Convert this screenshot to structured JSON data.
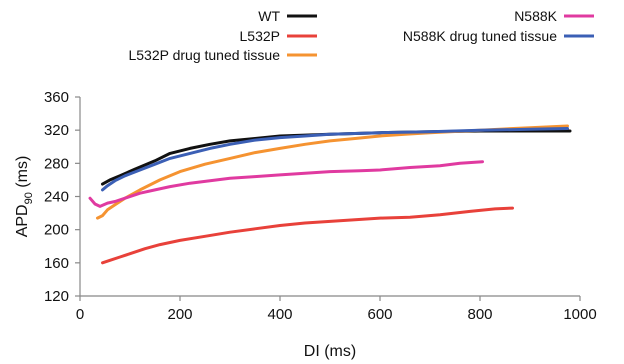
{
  "chart_data": {
    "type": "line",
    "title": "",
    "xlabel": "DI (ms)",
    "ylabel": {
      "main": "APD",
      "sub": "90",
      "unit": " (ms)"
    },
    "xlim": [
      0,
      1000
    ],
    "ylim": [
      120,
      360
    ],
    "xticks": [
      "0",
      "200",
      "400",
      "600",
      "800",
      "1000"
    ],
    "yticks": [
      "120",
      "160",
      "200",
      "240",
      "280",
      "320",
      "360"
    ],
    "grid": false,
    "legend_position": "top",
    "series": [
      {
        "name": "WT",
        "color": "#111111",
        "points": [
          [
            45,
            255
          ],
          [
            60,
            260
          ],
          [
            80,
            265
          ],
          [
            110,
            273
          ],
          [
            150,
            283
          ],
          [
            180,
            292
          ],
          [
            220,
            298
          ],
          [
            260,
            303
          ],
          [
            300,
            307
          ],
          [
            350,
            310
          ],
          [
            400,
            313
          ],
          [
            500,
            315
          ],
          [
            600,
            317
          ],
          [
            700,
            318
          ],
          [
            800,
            319
          ],
          [
            900,
            319
          ],
          [
            980,
            319
          ]
        ]
      },
      {
        "name": "L532P",
        "color": "#e8413a",
        "points": [
          [
            45,
            160
          ],
          [
            60,
            163
          ],
          [
            80,
            167
          ],
          [
            100,
            171
          ],
          [
            130,
            177
          ],
          [
            160,
            182
          ],
          [
            200,
            187
          ],
          [
            250,
            192
          ],
          [
            300,
            197
          ],
          [
            350,
            201
          ],
          [
            400,
            205
          ],
          [
            450,
            208
          ],
          [
            500,
            210
          ],
          [
            550,
            212
          ],
          [
            600,
            214
          ],
          [
            660,
            215
          ],
          [
            720,
            218
          ],
          [
            780,
            222
          ],
          [
            830,
            225
          ],
          [
            865,
            226
          ]
        ]
      },
      {
        "name": "L532P drug tuned tissue",
        "color": "#f59331",
        "points": [
          [
            35,
            214
          ],
          [
            45,
            217
          ],
          [
            55,
            224
          ],
          [
            70,
            230
          ],
          [
            90,
            238
          ],
          [
            120,
            248
          ],
          [
            160,
            260
          ],
          [
            200,
            270
          ],
          [
            250,
            279
          ],
          [
            300,
            286
          ],
          [
            350,
            293
          ],
          [
            400,
            298
          ],
          [
            450,
            303
          ],
          [
            500,
            307
          ],
          [
            550,
            310
          ],
          [
            600,
            313
          ],
          [
            650,
            315
          ],
          [
            700,
            317
          ],
          [
            800,
            320
          ],
          [
            900,
            323
          ],
          [
            975,
            325
          ]
        ]
      },
      {
        "name": "N588K",
        "color": "#e03aa0",
        "points": [
          [
            20,
            238
          ],
          [
            30,
            231
          ],
          [
            40,
            228
          ],
          [
            55,
            232
          ],
          [
            70,
            234
          ],
          [
            90,
            238
          ],
          [
            120,
            244
          ],
          [
            150,
            248
          ],
          [
            180,
            252
          ],
          [
            220,
            256
          ],
          [
            260,
            259
          ],
          [
            300,
            262
          ],
          [
            350,
            264
          ],
          [
            400,
            266
          ],
          [
            450,
            268
          ],
          [
            500,
            270
          ],
          [
            560,
            271
          ],
          [
            600,
            272
          ],
          [
            660,
            275
          ],
          [
            720,
            277
          ],
          [
            760,
            280
          ],
          [
            805,
            282
          ]
        ]
      },
      {
        "name": "N588K drug tuned tissue",
        "color": "#3b5fb5",
        "points": [
          [
            45,
            248
          ],
          [
            55,
            253
          ],
          [
            70,
            259
          ],
          [
            90,
            265
          ],
          [
            120,
            272
          ],
          [
            150,
            279
          ],
          [
            180,
            286
          ],
          [
            220,
            292
          ],
          [
            260,
            298
          ],
          [
            300,
            303
          ],
          [
            350,
            308
          ],
          [
            400,
            311
          ],
          [
            450,
            313
          ],
          [
            500,
            315
          ],
          [
            550,
            316
          ],
          [
            600,
            317
          ],
          [
            700,
            318
          ],
          [
            800,
            320
          ],
          [
            900,
            321
          ],
          [
            975,
            322
          ]
        ]
      }
    ]
  }
}
